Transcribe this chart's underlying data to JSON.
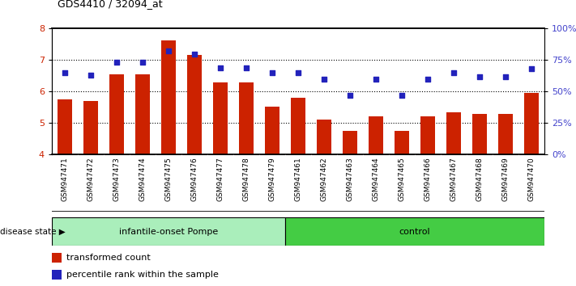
{
  "title": "GDS4410 / 32094_at",
  "samples": [
    "GSM947471",
    "GSM947472",
    "GSM947473",
    "GSM947474",
    "GSM947475",
    "GSM947476",
    "GSM947477",
    "GSM947478",
    "GSM947479",
    "GSM947461",
    "GSM947462",
    "GSM947463",
    "GSM947464",
    "GSM947465",
    "GSM947466",
    "GSM947467",
    "GSM947468",
    "GSM947469",
    "GSM947470"
  ],
  "bar_values": [
    5.75,
    5.7,
    6.55,
    6.55,
    7.62,
    7.15,
    6.3,
    6.3,
    5.52,
    5.8,
    5.12,
    4.75,
    5.22,
    4.75,
    5.22,
    5.35,
    5.28,
    5.28,
    5.95
  ],
  "dot_percentiles": [
    65,
    63,
    73,
    73,
    82,
    80,
    69,
    69,
    65,
    65,
    60,
    47,
    60,
    47,
    60,
    65,
    62,
    62,
    68
  ],
  "group1_label": "infantile-onset Pompe",
  "group2_label": "control",
  "group1_count": 9,
  "group2_count": 10,
  "ylim_left": [
    4,
    8
  ],
  "ylim_right": [
    0,
    100
  ],
  "yticks_left": [
    4,
    5,
    6,
    7,
    8
  ],
  "yticks_right": [
    0,
    25,
    50,
    75,
    100
  ],
  "ytick_labels_right": [
    "0%",
    "25%",
    "50%",
    "75%",
    "100%"
  ],
  "bar_color": "#cc2200",
  "dot_color": "#2222bb",
  "grid_color": "#000000",
  "bg_color": "#ffffff",
  "tick_label_color_left": "#cc2200",
  "tick_label_color_right": "#4444cc",
  "group1_bg": "#aaeebb",
  "group2_bg": "#44cc44",
  "sample_label_bg": "#cccccc",
  "disease_state_label": "disease state",
  "legend_bar_label": "transformed count",
  "legend_dot_label": "percentile rank within the sample"
}
